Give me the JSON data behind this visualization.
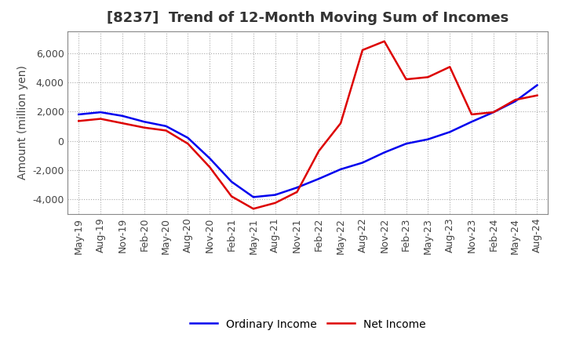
{
  "title": "[8237]  Trend of 12-Month Moving Sum of Incomes",
  "ylabel": "Amount (million yen)",
  "background_color": "#ffffff",
  "grid_color": "#aaaaaa",
  "x_labels": [
    "May-19",
    "Aug-19",
    "Nov-19",
    "Feb-20",
    "May-20",
    "Aug-20",
    "Nov-20",
    "Feb-21",
    "May-21",
    "Aug-21",
    "Nov-21",
    "Feb-22",
    "May-22",
    "Aug-22",
    "Nov-22",
    "Feb-23",
    "May-23",
    "Aug-23",
    "Nov-23",
    "Feb-24",
    "May-24",
    "Aug-24"
  ],
  "ordinary_income": [
    1800,
    1950,
    1700,
    1300,
    1000,
    200,
    -1200,
    -2800,
    -3850,
    -3700,
    -3200,
    -2600,
    -1950,
    -1500,
    -800,
    -200,
    100,
    600,
    1300,
    1950,
    2700,
    3800
  ],
  "net_income": [
    1350,
    1500,
    1200,
    900,
    700,
    -200,
    -1800,
    -3800,
    -4650,
    -4250,
    -3500,
    -700,
    1200,
    6200,
    6800,
    4200,
    4350,
    5050,
    1800,
    1950,
    2800,
    3100
  ],
  "ordinary_color": "#0000ee",
  "net_color": "#dd0000",
  "ylim": [
    -5000,
    7500
  ],
  "yticks": [
    -4000,
    -2000,
    0,
    2000,
    4000,
    6000
  ],
  "line_width": 1.8,
  "title_fontsize": 13,
  "legend_fontsize": 10,
  "tick_fontsize": 9,
  "ylabel_fontsize": 10,
  "title_color": "#333333"
}
